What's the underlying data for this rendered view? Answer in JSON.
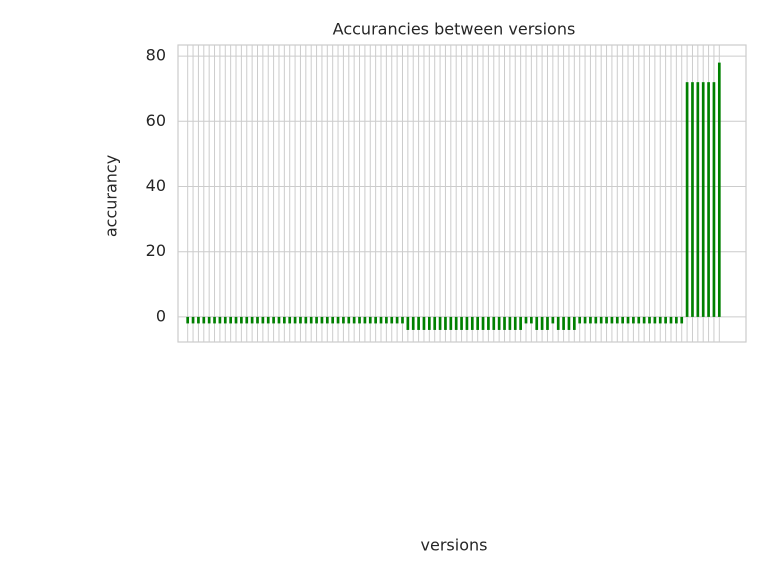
{
  "chart_data": {
    "type": "bar",
    "title": "Accurancies between versions",
    "xlabel": "versions",
    "ylabel": "accurancy",
    "categories": [
      null,
      null,
      null,
      null,
      null,
      null,
      null,
      null,
      null,
      null,
      null,
      null,
      null,
      null,
      null,
      null,
      null,
      null,
      null,
      null,
      null,
      null,
      null,
      null,
      null,
      null,
      null,
      null,
      null,
      null,
      null,
      null,
      null,
      null,
      null,
      null,
      null,
      null,
      null,
      null,
      null,
      null,
      null,
      null,
      null,
      null,
      null,
      null,
      null,
      null,
      null,
      null,
      null,
      null,
      null,
      null,
      null,
      null,
      null,
      null,
      null,
      null,
      null,
      null,
      null,
      null,
      null,
      null,
      null,
      null,
      null,
      null,
      null,
      null,
      null,
      null,
      null,
      null,
      null,
      null,
      null,
      null,
      null,
      null,
      null,
      null,
      null,
      null,
      null,
      null,
      null,
      null,
      null,
      null,
      null,
      null,
      null,
      null,
      null,
      null
    ],
    "values": [
      -2,
      -2,
      -2,
      -2,
      -2,
      -2,
      -2,
      -2,
      -2,
      -2,
      -2,
      -2,
      -2,
      -2,
      -2,
      -2,
      -2,
      -2,
      -2,
      -2,
      -2,
      -2,
      -2,
      -2,
      -2,
      -2,
      -2,
      -2,
      -2,
      -2,
      -2,
      -2,
      -2,
      -2,
      -2,
      -2,
      -2,
      -2,
      -2,
      -2,
      -2,
      -4,
      -4,
      -4,
      -4,
      -4,
      -4,
      -4,
      -4,
      -4,
      -4,
      -4,
      -4,
      -4,
      -4,
      -4,
      -4,
      -4,
      -4,
      -4,
      -4,
      -4,
      -4,
      -2,
      -2,
      -4,
      -4,
      -4,
      -2,
      -4,
      -4,
      -4,
      -4,
      -2,
      -2,
      -2,
      -2,
      -2,
      -2,
      -2,
      -2,
      -2,
      -2,
      -2,
      -2,
      -2,
      -2,
      -2,
      -2,
      -2,
      -2,
      -2,
      -2,
      72,
      72,
      72,
      72,
      72,
      72,
      78
    ],
    "color": "#008000",
    "ylim": [
      -7.7,
      83.4
    ],
    "yticks": [
      0,
      20,
      40,
      60,
      80
    ],
    "grid": true
  }
}
